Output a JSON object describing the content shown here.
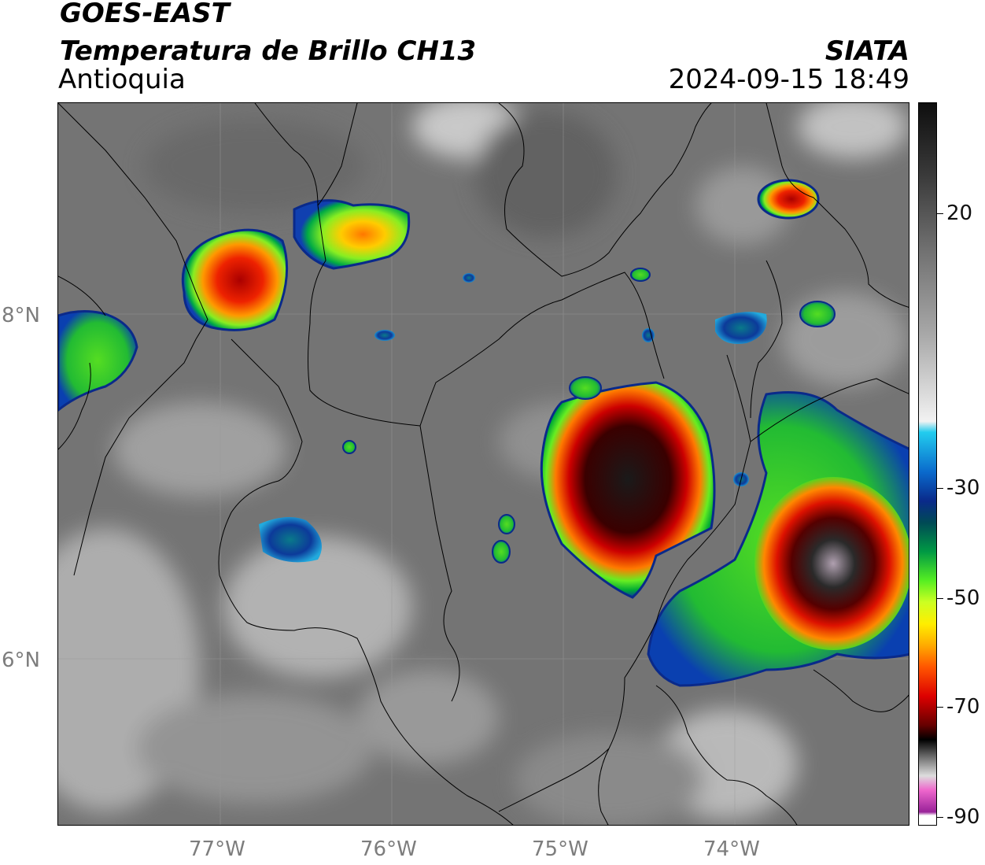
{
  "header": {
    "satellite": "GOES-EAST",
    "product": "Temperatura de Brillo CH13",
    "region": "Antioquia",
    "organization": "SIATA",
    "timestamp": "2024-09-15 18:49"
  },
  "map": {
    "lat_gridlines": [
      "8°N",
      "6°N"
    ],
    "lon_gridlines": [
      "77°W",
      "76°W",
      "75°W",
      "74°W"
    ],
    "background_colors": {
      "cloud_free": "#6f6f6f",
      "thin_cloud": "#c8c8c8"
    }
  },
  "colorbar": {
    "ticks": [
      "20",
      "-30",
      "-50",
      "-70",
      "-90"
    ],
    "colors": [
      "#111111",
      "#9a9a9a",
      "#f5f5f5",
      "#22ccee",
      "#0a2a8a",
      "#00aa44",
      "#66ff33",
      "#ffee00",
      "#ff8800",
      "#dd0000",
      "#550000",
      "#000000",
      "#bbbbbb",
      "#ee66cc",
      "#882299",
      "#ffffff"
    ]
  }
}
